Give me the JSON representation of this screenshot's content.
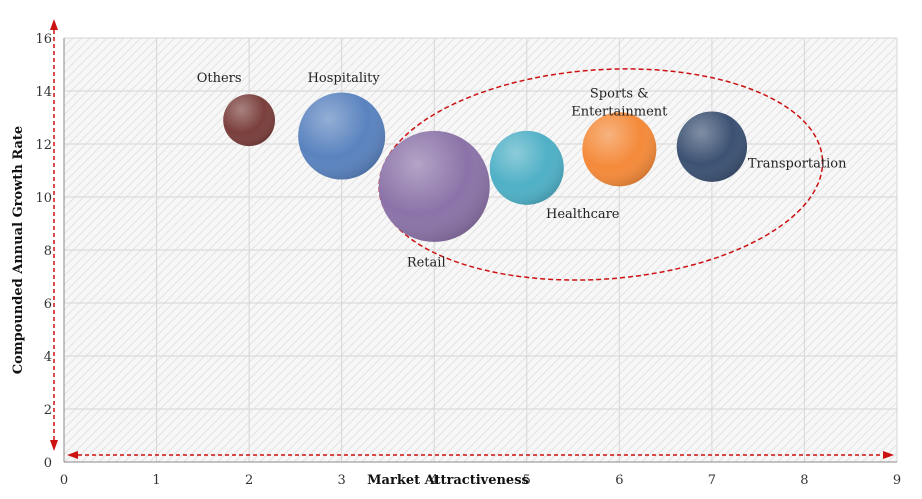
{
  "chart_data": {
    "type": "bubble",
    "xlabel": "Market Attractiveness",
    "ylabel": "Compounded Annual Growth Rate",
    "xlim": [
      0,
      9
    ],
    "ylim": [
      0,
      16
    ],
    "x_ticks": [
      0,
      1,
      2,
      3,
      4,
      5,
      6,
      7,
      8,
      9
    ],
    "y_ticks": [
      0,
      2,
      4,
      6,
      8,
      10,
      12,
      14,
      16
    ],
    "grid": true,
    "bubbles": [
      {
        "label": "Others",
        "x": 2,
        "y": 12.9,
        "size": 0.28,
        "color": "#7a3f3c"
      },
      {
        "label": "Hospitality",
        "x": 3,
        "y": 12.3,
        "size": 0.47,
        "color": "#5a83bf"
      },
      {
        "label": "Retail",
        "x": 4,
        "y": 10.4,
        "size": 0.6,
        "color": "#8b73a8"
      },
      {
        "label": "Healthcare",
        "x": 5,
        "y": 11.1,
        "size": 0.4,
        "color": "#4fb0c6"
      },
      {
        "label": "Sports & Entertainment",
        "label_lines": [
          "Sports &",
          "Entertainment"
        ],
        "x": 6,
        "y": 11.8,
        "size": 0.4,
        "color": "#f48a3a"
      },
      {
        "label": "Transportation",
        "x": 7,
        "y": 11.9,
        "size": 0.38,
        "color": "#3c5273"
      }
    ],
    "highlight_ellipse": {
      "cx": 5.8,
      "cy": 10.85,
      "rx": 2.4,
      "ry": 3.95,
      "color": "#cc1111"
    },
    "axis_arrow_color": "#cc1111"
  }
}
